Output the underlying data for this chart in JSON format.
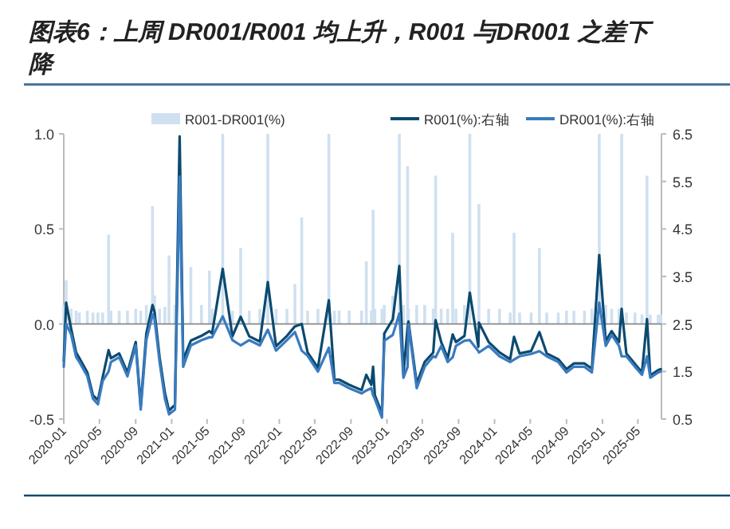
{
  "chart_data": {
    "type": "bar",
    "title": "图表6：上周 DR001/R001 均上升，R001 与DR001 之差下降",
    "x": [
      "2020-01-01",
      "2020-01-09",
      "2020-01-26",
      "2020-02-12",
      "2020-02-23",
      "2020-03-21",
      "2020-04-09",
      "2020-04-26",
      "2020-05-12",
      "2020-06-01",
      "2020-06-09",
      "2020-07-07",
      "2020-08-04",
      "2020-09-01",
      "2020-09-18",
      "2020-10-07",
      "2020-10-28",
      "2020-11-04",
      "2020-11-21",
      "2020-12-09",
      "2020-12-23",
      "2021-01-12",
      "2021-01-28",
      "2021-02-09",
      "2021-03-07",
      "2021-04-12",
      "2021-05-09",
      "2021-05-18",
      "2021-06-23",
      "2021-07-26",
      "2021-08-23",
      "2021-09-21",
      "2021-10-27",
      "2021-11-23",
      "2021-12-21",
      "2022-01-27",
      "2022-02-23",
      "2022-03-18",
      "2022-04-07",
      "2022-05-12",
      "2022-06-18",
      "2022-07-07",
      "2022-07-23",
      "2022-08-26",
      "2022-10-07",
      "2022-10-23",
      "2022-11-09",
      "2022-11-15",
      "2022-11-21",
      "2022-12-15",
      "2022-12-23",
      "2023-01-21",
      "2023-02-12",
      "2023-02-26",
      "2023-03-12",
      "2023-03-15",
      "2023-04-12",
      "2023-05-09",
      "2023-06-07",
      "2023-06-15",
      "2023-07-04",
      "2023-07-26",
      "2023-08-12",
      "2023-08-23",
      "2023-09-21",
      "2023-10-09",
      "2023-11-07",
      "2023-11-09",
      "2023-12-12",
      "2024-01-18",
      "2024-02-23",
      "2024-03-07",
      "2024-03-26",
      "2024-05-04",
      "2024-06-01",
      "2024-06-26",
      "2024-08-04",
      "2024-09-01",
      "2024-09-26",
      "2024-11-01",
      "2024-11-26",
      "2024-12-21",
      "2025-01-12",
      "2025-02-01",
      "2025-02-26",
      "2025-03-07",
      "2025-03-23",
      "2025-04-21",
      "2025-05-15",
      "2025-06-01",
      "2025-06-12",
      "2025-07-09",
      "2025-07-18"
    ],
    "series": [
      {
        "name": "R001-DR001(%)",
        "color": "#cfe0f0",
        "values": [
          0.1,
          0.23,
          0.08,
          0.07,
          0.06,
          0.07,
          0.06,
          0.06,
          0.06,
          0.47,
          0.07,
          0.07,
          0.07,
          0.08,
          0.07,
          0.1,
          0.62,
          0.15,
          0.08,
          0.09,
          0.36,
          0.1,
          null,
          null,
          0.3,
          0.1,
          0.28,
          0.08,
          1.0,
          0.07,
          0.4,
          0.07,
          0.08,
          1.0,
          0.08,
          0.08,
          0.21,
          0.56,
          0.07,
          0.08,
          1.0,
          0.07,
          0.07,
          0.07,
          0.07,
          0.33,
          0.07,
          0.6,
          0.08,
          0.08,
          0.1,
          0.15,
          1.0,
          0.1,
          0.83,
          0.08,
          0.1,
          0.1,
          0.08,
          0.78,
          0.08,
          0.08,
          0.48,
          0.08,
          0.1,
          1.0,
          null,
          0.63,
          0.08,
          0.08,
          0.06,
          0.48,
          0.06,
          0.06,
          0.4,
          0.06,
          0.06,
          0.07,
          0.07,
          0.07,
          0.08,
          1.0,
          0.1,
          0.08,
          0.08,
          1.0,
          0.06,
          0.06,
          0.05,
          0.78,
          0.05,
          0.05,
          0.05
        ]
      },
      {
        "name": "R001(%):右轴",
        "type": "line",
        "axis": "y2",
        "color": "#0b4a6f",
        "values": [
          1.72,
          2.95,
          2.4,
          1.9,
          1.78,
          1.48,
          1.0,
          0.9,
          1.38,
          1.95,
          1.78,
          1.88,
          1.48,
          2.12,
          0.78,
          2.3,
          2.9,
          2.75,
          1.8,
          1.05,
          0.68,
          0.8,
          6.45,
          1.75,
          2.15,
          2.25,
          2.35,
          2.3,
          3.66,
          2.24,
          2.65,
          2.24,
          2.13,
          3.38,
          2.03,
          2.25,
          2.45,
          2.5,
          1.9,
          1.58,
          3.0,
          1.33,
          1.33,
          1.22,
          1.11,
          1.43,
          1.22,
          1.6,
          1.0,
          0.62,
          2.3,
          2.6,
          3.72,
          1.45,
          2.43,
          2.55,
          1.25,
          1.7,
          1.9,
          2.58,
          2.12,
          1.78,
          2.28,
          2.12,
          2.25,
          3.16,
          2.02,
          2.53,
          2.12,
          1.9,
          1.76,
          2.23,
          1.88,
          1.93,
          2.33,
          1.88,
          1.76,
          1.55,
          1.67,
          1.67,
          1.56,
          3.95,
          2.14,
          2.35,
          2.12,
          2.82,
          1.88,
          1.66,
          1.48,
          2.6,
          1.42,
          1.53,
          1.55
        ]
      },
      {
        "name": "DR001(%):右轴",
        "type": "line",
        "axis": "y2",
        "color": "#3a7bbf",
        "values": [
          1.6,
          2.5,
          2.28,
          1.8,
          1.7,
          1.4,
          0.93,
          0.81,
          1.3,
          1.5,
          1.7,
          1.8,
          1.4,
          2.05,
          0.7,
          2.16,
          2.7,
          2.6,
          1.7,
          0.93,
          0.6,
          0.7,
          5.6,
          1.6,
          2.05,
          2.16,
          2.22,
          2.22,
          2.66,
          2.16,
          2.05,
          2.16,
          2.05,
          2.38,
          1.94,
          2.16,
          2.33,
          1.94,
          1.83,
          1.5,
          2.0,
          1.26,
          1.26,
          1.15,
          1.04,
          1.1,
          1.15,
          1.0,
          0.92,
          0.53,
          2.15,
          2.27,
          2.72,
          1.37,
          1.6,
          2.49,
          1.15,
          1.6,
          1.82,
          1.8,
          2.04,
          1.7,
          1.8,
          2.04,
          2.15,
          2.16,
          1.93,
          1.9,
          2.04,
          1.82,
          1.7,
          1.75,
          1.82,
          1.87,
          1.93,
          1.82,
          1.7,
          1.48,
          1.6,
          1.6,
          1.48,
          2.95,
          2.04,
          2.27,
          2.04,
          1.82,
          1.82,
          1.6,
          1.43,
          1.82,
          1.37,
          1.48,
          1.5
        ]
      }
    ],
    "xlim": [
      "2020-01-01",
      "2025-07-20"
    ],
    "xticks": [
      "2020-01",
      "2020-05",
      "2020-09",
      "2021-01",
      "2021-05",
      "2021-09",
      "2022-01",
      "2022-05",
      "2022-09",
      "2023-01",
      "2023-05",
      "2023-09",
      "2024-01",
      "2024-05",
      "2024-09",
      "2025-01",
      "2025-05"
    ],
    "ylim": [
      -0.5,
      1.0
    ],
    "yticks": [
      -0.5,
      {
        "value": 0,
        "label": "0.0"
      },
      0.5,
      {
        "value": 1.0,
        "label": "1.0"
      }
    ],
    "y2lim": [
      0.5,
      6.5
    ],
    "y2ticks": [
      0.5,
      1.5,
      2.5,
      3.5,
      4.5,
      5.5,
      6.5
    ],
    "legend": "top"
  }
}
